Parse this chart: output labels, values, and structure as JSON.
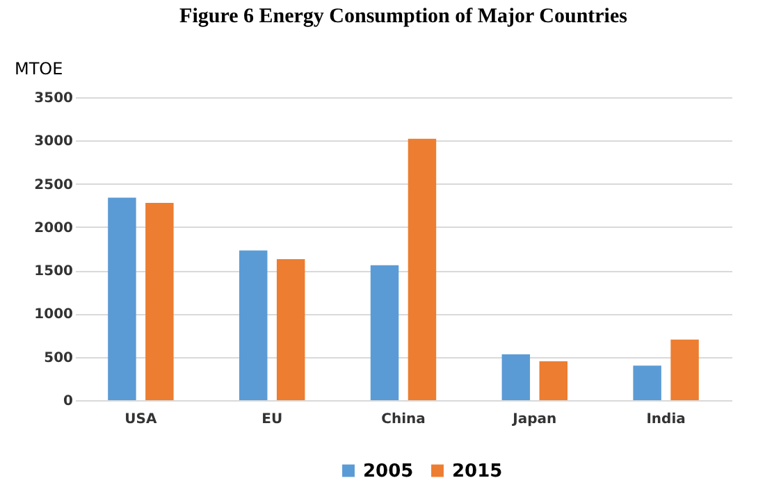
{
  "chart_data": {
    "type": "bar",
    "title": "Figure 6   Energy Consumption of Major Countries",
    "ylabel": "MTOE",
    "categories": [
      "USA",
      "EU",
      "China",
      "Japan",
      "India"
    ],
    "series": [
      {
        "name": "2005",
        "color": "#5b9bd5",
        "values": [
          2340,
          1730,
          1560,
          530,
          400
        ]
      },
      {
        "name": "2015",
        "color": "#ed7d31",
        "values": [
          2280,
          1630,
          3020,
          450,
          700
        ]
      }
    ],
    "ylim": [
      0,
      3500
    ],
    "yticks": [
      0,
      500,
      1000,
      1500,
      2000,
      2500,
      3000,
      3500
    ],
    "grid": "y",
    "legend": "bottom"
  }
}
